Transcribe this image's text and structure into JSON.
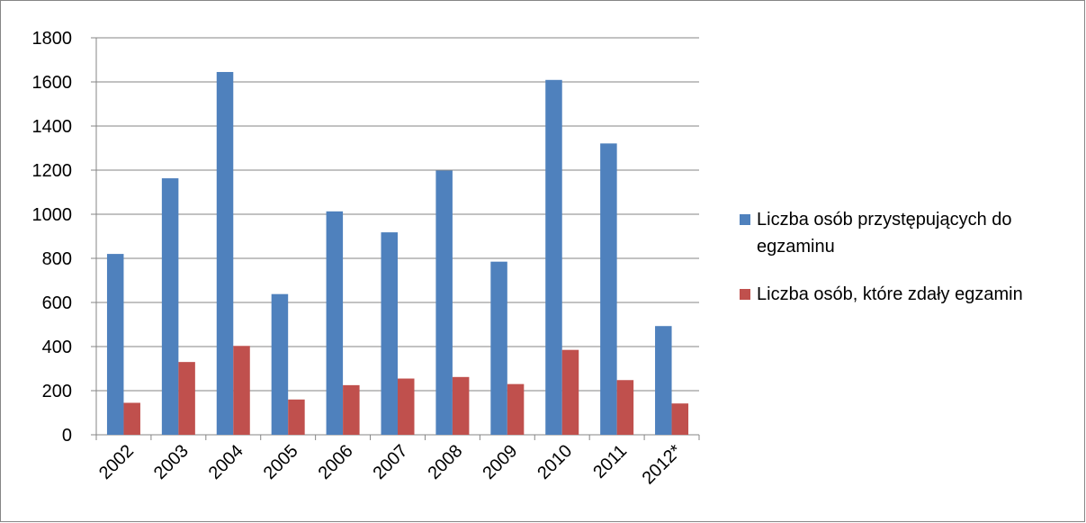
{
  "chart_data": {
    "type": "bar",
    "categories": [
      "2002",
      "2003",
      "2004",
      "2005",
      "2006",
      "2007",
      "2008",
      "2009",
      "2010",
      "2011",
      "2012*"
    ],
    "series": [
      {
        "name": "Liczba osób przystępujących do egzaminu",
        "legend_lines": [
          "Liczba osób przystępujących do",
          "egzaminu"
        ],
        "color": "#4F81BD",
        "values": [
          820,
          1163,
          1645,
          638,
          1013,
          918,
          1198,
          785,
          1609,
          1321,
          493
        ]
      },
      {
        "name": "Liczba osób, które zdały egzamin",
        "legend_lines": [
          "Liczba osób, które zdały egzamin"
        ],
        "color": "#C0504D",
        "values": [
          145,
          330,
          403,
          160,
          225,
          255,
          262,
          230,
          385,
          248,
          142
        ]
      }
    ],
    "ylim": [
      0,
      1800
    ],
    "yticks": [
      0,
      200,
      400,
      600,
      800,
      1000,
      1200,
      1400,
      1600,
      1800
    ],
    "grid": true,
    "legend_position": "right",
    "title": "",
    "xlabel": "",
    "ylabel": ""
  }
}
